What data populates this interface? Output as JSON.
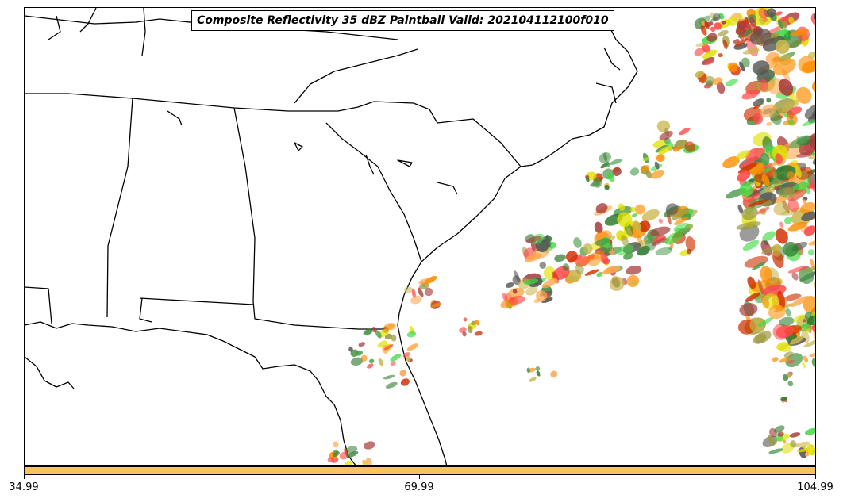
{
  "title": "Composite Reflectivity 35 dBZ Paintball Valid: 202104112100f010",
  "colorbar": {
    "color": "#ffc05e",
    "ticks": [
      "34.99",
      "69.99",
      "104.99"
    ]
  },
  "colors": {
    "coast": "#000000",
    "echo_palette": [
      "#ff4a4a",
      "#ff8c00",
      "#ffa64d",
      "#c8b64a",
      "#9c9a3e",
      "#3fd93f",
      "#4a9a4a",
      "#2f7a2f",
      "#a83a3a",
      "#555555",
      "#e0e000",
      "#d03000"
    ]
  },
  "map": {
    "region": "southeastern-united-states",
    "field": "composite-reflectivity-paintball"
  }
}
